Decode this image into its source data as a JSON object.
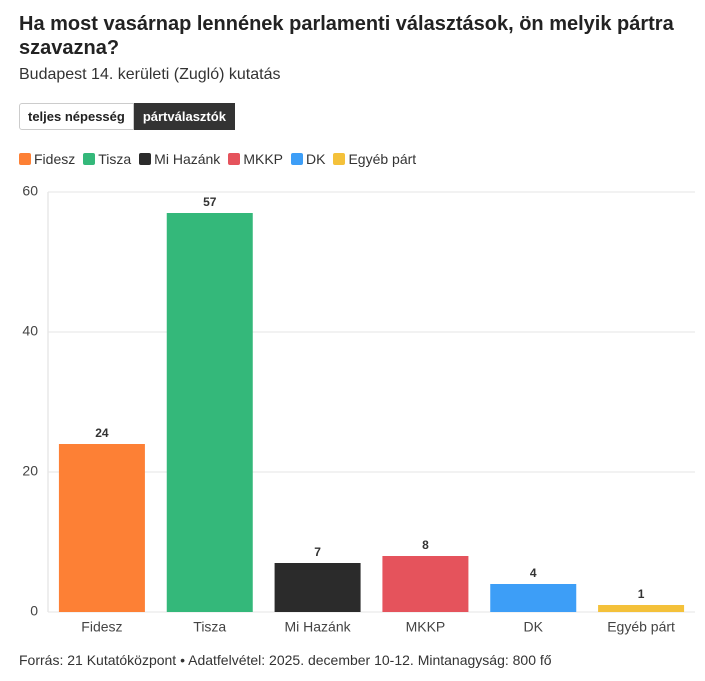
{
  "chart_data": {
    "type": "bar",
    "title": "Ha most vasárnap lennének parlamenti választások, ön melyik pártra szavazna?",
    "subtitle": "Budapest 14. kerületi (Zugló) kutatás",
    "categories": [
      "Fidesz",
      "Tisza",
      "Mi Hazánk",
      "MKKP",
      "DK",
      "Egyéb párt"
    ],
    "values": [
      24,
      57,
      7,
      8,
      4,
      1
    ],
    "colors": [
      "#fd8035",
      "#34b87a",
      "#2b2b2b",
      "#e5535c",
      "#3d9ef7",
      "#f4c13a"
    ],
    "ylim": [
      0,
      60
    ],
    "yticks": [
      0,
      20,
      40,
      60
    ],
    "grid": true,
    "source": "Forrás: 21 Kutatóközpont • Adatfelvétel: 2025. december 10-12. Mintanagyság: 800 fő"
  },
  "toggle": {
    "options": [
      "teljes népesség",
      "pártválasztók"
    ],
    "selected": 1
  }
}
